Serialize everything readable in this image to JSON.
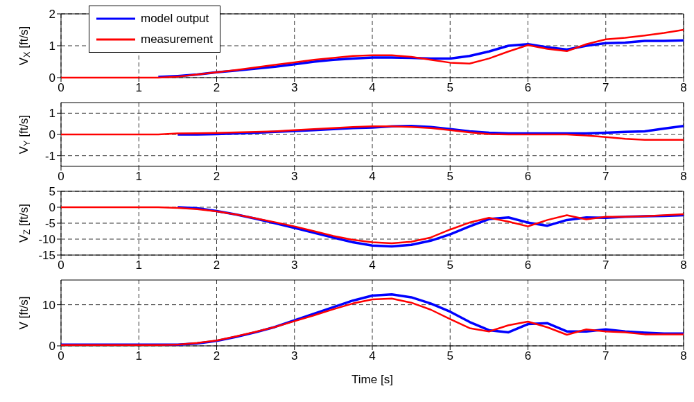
{
  "chart_data": [
    {
      "type": "line",
      "ylabel": "V$_{X}$ [ft/s]",
      "x": [
        0,
        0.25,
        0.5,
        0.75,
        1,
        1.25,
        1.5,
        1.75,
        2,
        2.25,
        2.5,
        2.75,
        3,
        3.25,
        3.5,
        3.75,
        4,
        4.25,
        4.5,
        4.75,
        5,
        5.25,
        5.5,
        5.75,
        6,
        6.25,
        6.5,
        6.75,
        7,
        7.25,
        7.5,
        7.75,
        8
      ],
      "xlim": [
        0,
        8
      ],
      "xticks": [
        0,
        1,
        2,
        3,
        4,
        5,
        6,
        7,
        8
      ],
      "ylim": [
        0,
        2
      ],
      "yticks": [
        0,
        1,
        2
      ],
      "grid": true,
      "legend": "top left",
      "line_style": "solid",
      "series": [
        {
          "name": "model output",
          "color": "#0000ff",
          "values": [
            null,
            null,
            null,
            null,
            null,
            0.02,
            0.05,
            0.1,
            0.17,
            0.22,
            0.28,
            0.34,
            0.42,
            0.5,
            0.56,
            0.6,
            0.63,
            0.63,
            0.62,
            0.6,
            0.6,
            0.68,
            0.82,
            1.0,
            1.05,
            0.95,
            0.88,
            1.0,
            1.08,
            1.1,
            1.15,
            1.15,
            1.17
          ]
        },
        {
          "name": "measurement",
          "color": "#ff0000",
          "values": [
            0,
            0,
            0,
            0,
            0,
            0,
            0.03,
            0.1,
            0.17,
            0.24,
            0.32,
            0.4,
            0.48,
            0.56,
            0.62,
            0.68,
            0.7,
            0.7,
            0.65,
            0.56,
            0.47,
            0.44,
            0.6,
            0.82,
            1.02,
            0.9,
            0.83,
            1.05,
            1.2,
            1.25,
            1.32,
            1.4,
            1.5
          ]
        }
      ]
    },
    {
      "type": "line",
      "ylabel": "V$_{Y}$ [ft/s]",
      "x": [
        0,
        0.25,
        0.5,
        0.75,
        1,
        1.25,
        1.5,
        1.75,
        2,
        2.25,
        2.5,
        2.75,
        3,
        3.25,
        3.5,
        3.75,
        4,
        4.25,
        4.5,
        4.75,
        5,
        5.25,
        5.5,
        5.75,
        6,
        6.25,
        6.5,
        6.75,
        7,
        7.25,
        7.5,
        7.75,
        8
      ],
      "xlim": [
        0,
        8
      ],
      "xticks": [
        0,
        1,
        2,
        3,
        4,
        5,
        6,
        7,
        8
      ],
      "ylim": [
        -1.5,
        1.5
      ],
      "yticks": [
        -1,
        0,
        1
      ],
      "grid": true,
      "line_style": "solid",
      "series": [
        {
          "color": "#0000ff",
          "values": [
            null,
            null,
            null,
            null,
            null,
            null,
            0,
            0,
            0.02,
            0.05,
            0.08,
            0.12,
            0.16,
            0.2,
            0.25,
            0.3,
            0.33,
            0.38,
            0.4,
            0.35,
            0.25,
            0.15,
            0.08,
            0.05,
            0.05,
            0.05,
            0.05,
            0.05,
            0.08,
            0.12,
            0.15,
            0.28,
            0.4
          ]
        },
        {
          "color": "#ff0000",
          "values": [
            0,
            0,
            0,
            0,
            0,
            0,
            0.05,
            0.06,
            0.07,
            0.1,
            0.12,
            0.15,
            0.2,
            0.25,
            0.3,
            0.35,
            0.38,
            0.38,
            0.35,
            0.3,
            0.2,
            0.1,
            0.02,
            0,
            0,
            0,
            0,
            -0.05,
            -0.12,
            -0.2,
            -0.25,
            -0.25,
            -0.25
          ]
        }
      ]
    },
    {
      "type": "line",
      "ylabel": "V$_{Z}$ [ft/s]",
      "x": [
        0,
        0.25,
        0.5,
        0.75,
        1,
        1.25,
        1.5,
        1.75,
        2,
        2.25,
        2.5,
        2.75,
        3,
        3.25,
        3.5,
        3.75,
        4,
        4.25,
        4.5,
        4.75,
        5,
        5.25,
        5.5,
        5.75,
        6,
        6.25,
        6.5,
        6.75,
        7,
        7.25,
        7.5,
        7.75,
        8
      ],
      "xlim": [
        0,
        8
      ],
      "xticks": [
        0,
        1,
        2,
        3,
        4,
        5,
        6,
        7,
        8
      ],
      "ylim": [
        -15,
        5
      ],
      "yticks": [
        -15,
        -10,
        -5,
        0,
        5
      ],
      "grid": true,
      "line_style": "solid",
      "series": [
        {
          "color": "#0000ff",
          "values": [
            null,
            null,
            null,
            null,
            null,
            null,
            0,
            -0.3,
            -1.2,
            -2.3,
            -3.6,
            -5,
            -6.5,
            -8,
            -9.5,
            -11,
            -12,
            -12.3,
            -11.8,
            -10.5,
            -8.5,
            -6,
            -3.7,
            -3.2,
            -4.8,
            -5.8,
            -4,
            -3.2,
            -3.3,
            -3,
            -2.8,
            -2.7,
            -2.5
          ]
        },
        {
          "color": "#ff0000",
          "values": [
            0,
            0,
            0,
            0,
            0,
            0,
            -0.2,
            -0.6,
            -1.3,
            -2.3,
            -3.5,
            -4.7,
            -6,
            -7.5,
            -9,
            -10.2,
            -11,
            -11.3,
            -10.8,
            -9.5,
            -7,
            -4.8,
            -3.3,
            -4.5,
            -6,
            -4,
            -2.5,
            -3.8,
            -3,
            -3,
            -2.8,
            -2.5,
            -2.2
          ]
        }
      ]
    },
    {
      "type": "line",
      "ylabel": "V [ft/s]",
      "xlabel": "Time [s]",
      "x": [
        0,
        0.25,
        0.5,
        0.75,
        1,
        1.25,
        1.5,
        1.75,
        2,
        2.25,
        2.5,
        2.75,
        3,
        3.25,
        3.5,
        3.75,
        4,
        4.25,
        4.5,
        4.75,
        5,
        5.25,
        5.5,
        5.75,
        6,
        6.25,
        6.5,
        6.75,
        7,
        7.25,
        7.5,
        7.75,
        8
      ],
      "xlim": [
        0,
        8
      ],
      "xticks": [
        0,
        1,
        2,
        3,
        4,
        5,
        6,
        7,
        8
      ],
      "ylim": [
        0,
        16
      ],
      "yticks": [
        0,
        10
      ],
      "grid": true,
      "line_style": "solid",
      "series": [
        {
          "color": "#0000ff",
          "values": [
            0.3,
            0.3,
            0.3,
            0.3,
            0.3,
            0.3,
            0.3,
            0.6,
            1.2,
            2.2,
            3.3,
            4.6,
            6.2,
            7.8,
            9.4,
            11,
            12.2,
            12.5,
            11.8,
            10.3,
            8.3,
            5.8,
            3.8,
            3.3,
            5.3,
            5.5,
            3.5,
            3.5,
            4,
            3.5,
            3.2,
            3,
            3
          ]
        },
        {
          "color": "#ff0000",
          "values": [
            0.2,
            0.2,
            0.2,
            0.2,
            0.2,
            0.2,
            0.3,
            0.7,
            1.3,
            2.3,
            3.4,
            4.6,
            6,
            7.4,
            8.9,
            10.3,
            11.3,
            11.5,
            10.5,
            8.8,
            6.5,
            4.3,
            3.5,
            5,
            5.9,
            4.5,
            2.7,
            4,
            3.5,
            3.3,
            2.8,
            2.8,
            2.8
          ]
        }
      ]
    }
  ]
}
